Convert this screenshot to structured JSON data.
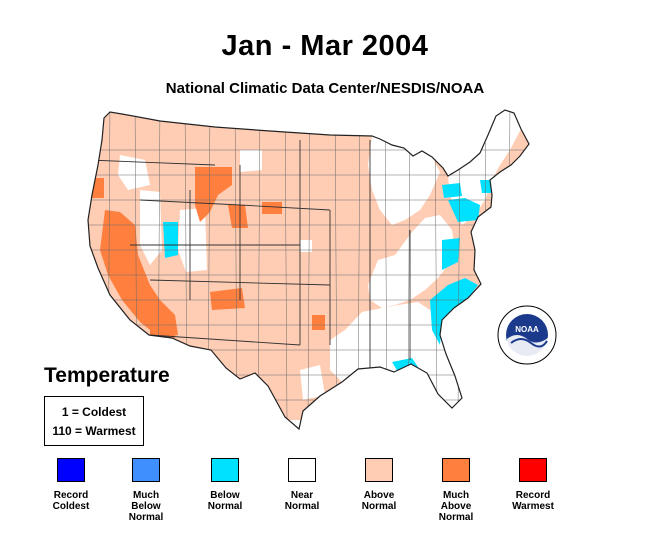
{
  "title": "Jan - Mar 2004",
  "subtitle": "National Climatic Data Center/NESDIS/NOAA",
  "variable": "Temperature",
  "rank_key": {
    "coldest": "1 = Coldest",
    "warmest": "110 = Warmest"
  },
  "legend": [
    {
      "label": "Record\nColdest",
      "color": "#0000ff"
    },
    {
      "label": "Much\nBelow\nNormal",
      "color": "#3f8fff"
    },
    {
      "label": "Below\nNormal",
      "color": "#00e0ff"
    },
    {
      "label": "Near\nNormal",
      "color": "#ffffff"
    },
    {
      "label": "Above\nNormal",
      "color": "#ffcdb4"
    },
    {
      "label": "Much\nAbove\nNormal",
      "color": "#ff7f3f"
    },
    {
      "label": "Record\nWarmest",
      "color": "#ff0000"
    }
  ],
  "logo": {
    "text": "NOAA",
    "icon": "noaa-logo-icon"
  },
  "colors": {
    "above_normal": "#ffcdb4",
    "much_above_normal": "#ff7f3f",
    "below_normal": "#00e0ff",
    "near_normal": "#ffffff",
    "border": "#555555"
  }
}
